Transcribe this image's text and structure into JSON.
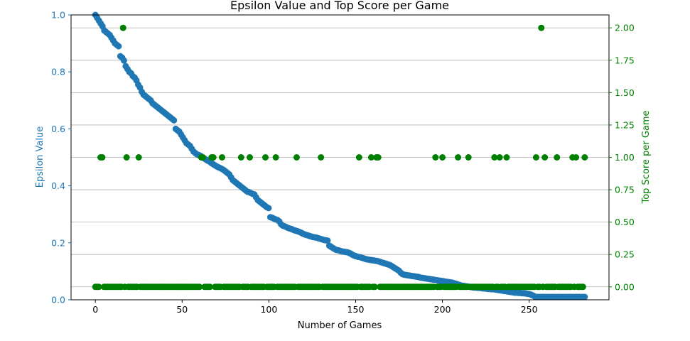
{
  "chart_data": {
    "type": "scatter",
    "title": "Epsilon Value and Top Score per Game",
    "xlabel": "Number of Games",
    "xlim": [
      -14,
      296
    ],
    "x_ticks": [
      0,
      50,
      100,
      150,
      200,
      250
    ],
    "left_axis": {
      "label": "Epsilon Value",
      "color": "#1f77b4",
      "ylim": [
        0,
        1
      ],
      "ticks": [
        "0.0",
        "0.2",
        "0.4",
        "0.6",
        "0.8",
        "1.0"
      ]
    },
    "right_axis": {
      "label": "Top Score per Game",
      "color": "#008000",
      "ylim": [
        -0.1,
        2.1
      ],
      "ticks": [
        "0.00",
        "0.25",
        "0.50",
        "0.75",
        "1.00",
        "1.25",
        "1.50",
        "1.75",
        "2.00"
      ],
      "grid": true
    },
    "series": [
      {
        "axis": "left",
        "color": "#1f77b4",
        "x_start": 0,
        "x_end": 282,
        "values": [
          1.0,
          0.99,
          0.98,
          0.97,
          0.96,
          0.945,
          0.94,
          0.935,
          0.93,
          0.92,
          0.91,
          0.9,
          0.895,
          0.89,
          0.855,
          0.85,
          0.84,
          0.82,
          0.81,
          0.8,
          0.795,
          0.785,
          0.78,
          0.77,
          0.755,
          0.745,
          0.73,
          0.72,
          0.715,
          0.71,
          0.705,
          0.7,
          0.69,
          0.685,
          0.68,
          0.675,
          0.67,
          0.665,
          0.66,
          0.655,
          0.65,
          0.645,
          0.64,
          0.635,
          0.63,
          0.6,
          0.595,
          0.59,
          0.58,
          0.57,
          0.56,
          0.55,
          0.545,
          0.54,
          0.53,
          0.52,
          0.515,
          0.51,
          0.508,
          0.505,
          0.5,
          0.496,
          0.492,
          0.488,
          0.485,
          0.48,
          0.476,
          0.472,
          0.468,
          0.465,
          0.462,
          0.459,
          0.455,
          0.45,
          0.445,
          0.44,
          0.43,
          0.42,
          0.415,
          0.41,
          0.405,
          0.4,
          0.395,
          0.39,
          0.385,
          0.38,
          0.378,
          0.375,
          0.372,
          0.37,
          0.36,
          0.35,
          0.345,
          0.34,
          0.335,
          0.33,
          0.325,
          0.322,
          0.29,
          0.288,
          0.285,
          0.282,
          0.28,
          0.275,
          0.265,
          0.26,
          0.258,
          0.255,
          0.252,
          0.25,
          0.248,
          0.245,
          0.243,
          0.241,
          0.239,
          0.236,
          0.233,
          0.23,
          0.228,
          0.226,
          0.224,
          0.222,
          0.22,
          0.219,
          0.218,
          0.216,
          0.214,
          0.212,
          0.21,
          0.209,
          0.208,
          0.19,
          0.186,
          0.182,
          0.178,
          0.175,
          0.174,
          0.172,
          0.17,
          0.169,
          0.168,
          0.167,
          0.165,
          0.162,
          0.158,
          0.155,
          0.153,
          0.151,
          0.15,
          0.148,
          0.146,
          0.144,
          0.142,
          0.141,
          0.14,
          0.139,
          0.138,
          0.137,
          0.136,
          0.134,
          0.132,
          0.13,
          0.128,
          0.126,
          0.124,
          0.122,
          0.118,
          0.114,
          0.11,
          0.106,
          0.102,
          0.095,
          0.09,
          0.088,
          0.087,
          0.086,
          0.085,
          0.084,
          0.083,
          0.082,
          0.081,
          0.08,
          0.078,
          0.077,
          0.076,
          0.075,
          0.074,
          0.073,
          0.072,
          0.071,
          0.07,
          0.069,
          0.068,
          0.067,
          0.066,
          0.065,
          0.064,
          0.063,
          0.062,
          0.061,
          0.06,
          0.058,
          0.056,
          0.054,
          0.052,
          0.05,
          0.049,
          0.048,
          0.047,
          0.046,
          0.045,
          0.044,
          0.043,
          0.043,
          0.042,
          0.042,
          0.041,
          0.04,
          0.04,
          0.039,
          0.038,
          0.038,
          0.037,
          0.037,
          0.036,
          0.035,
          0.034,
          0.033,
          0.032,
          0.031,
          0.03,
          0.029,
          0.028,
          0.027,
          0.026,
          0.025,
          0.025,
          0.024,
          0.024,
          0.023,
          0.023,
          0.022,
          0.021,
          0.02,
          0.018,
          0.015,
          0.012,
          0.01,
          0.01,
          0.01,
          0.01,
          0.01,
          0.01,
          0.01,
          0.01,
          0.01,
          0.01,
          0.01,
          0.01,
          0.01,
          0.01,
          0.01,
          0.01,
          0.01,
          0.01,
          0.01,
          0.01,
          0.01,
          0.01,
          0.01,
          0.01,
          0.01,
          0.01,
          0.01,
          0.01
        ]
      },
      {
        "axis": "right",
        "color": "#008000",
        "points_at_1": [
          3,
          4,
          18,
          25,
          61,
          62,
          67,
          68,
          73,
          84,
          89,
          98,
          104,
          116,
          130,
          152,
          159,
          162,
          163,
          196,
          200,
          209,
          215,
          230,
          233,
          237,
          254,
          259,
          266,
          275,
          277,
          282
        ],
        "points_at_2": [
          16,
          257
        ],
        "points_at_0_ranges": [
          [
            0,
            2
          ],
          [
            5,
            15
          ],
          [
            17,
            17
          ],
          [
            19,
            24
          ],
          [
            26,
            60
          ],
          [
            63,
            66
          ],
          [
            69,
            72
          ],
          [
            74,
            83
          ],
          [
            85,
            88
          ],
          [
            90,
            97
          ],
          [
            99,
            103
          ],
          [
            105,
            115
          ],
          [
            117,
            129
          ],
          [
            131,
            151
          ],
          [
            153,
            158
          ],
          [
            160,
            161
          ],
          [
            164,
            195
          ],
          [
            197,
            199
          ],
          [
            201,
            208
          ],
          [
            210,
            214
          ],
          [
            216,
            229
          ],
          [
            231,
            232
          ],
          [
            234,
            236
          ],
          [
            238,
            253
          ],
          [
            255,
            256
          ],
          [
            258,
            258
          ],
          [
            260,
            265
          ],
          [
            267,
            274
          ],
          [
            276,
            276
          ],
          [
            278,
            281
          ]
        ]
      }
    ]
  }
}
